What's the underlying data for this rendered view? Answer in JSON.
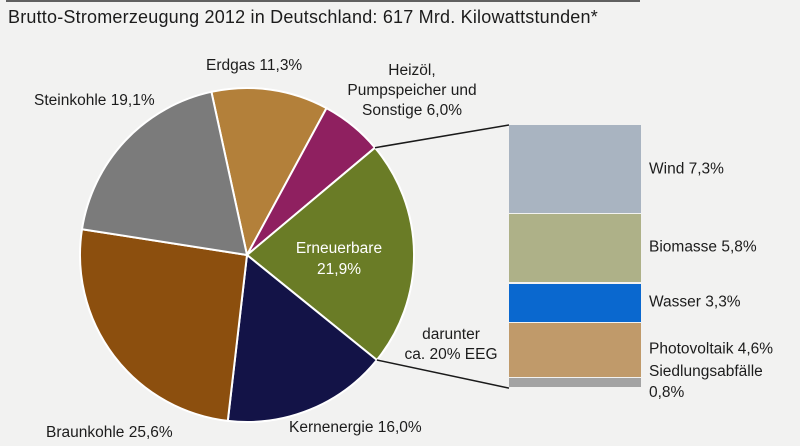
{
  "title": "Brutto-Stromerzeugung 2012 in Deutschland: 617 Mrd. Kilowattstunden*",
  "colors": {
    "background": "#f2f2f1",
    "text": "#1c1c1c",
    "connector_line": "#1a1a1a",
    "slice_divider": "#ffffff",
    "inside_label": "#ffffff"
  },
  "chart_data": [
    {
      "type": "pie",
      "title": "Brutto-Stromerzeugung 2012 in Deutschland",
      "total_label": "617 Mrd. Kilowattstunden*",
      "unit": "percent",
      "direction": "clockwise",
      "start_angle_deg": -12.3,
      "slices": [
        {
          "name": "Erdgas",
          "value": 11.3,
          "display": "Erdgas 11,3%",
          "color": "#b3803a"
        },
        {
          "name": "Heizöl, Pumpspeicher und Sonstige",
          "value": 6.0,
          "display": "Heizöl,\nPumpspeicher und\nSonstige 6,0%",
          "color": "#8f2060"
        },
        {
          "name": "Erneuerbare",
          "value": 21.9,
          "display": "Erneuerbare\n21,9%",
          "color": "#6a7c26",
          "label_inside": true
        },
        {
          "name": "Kernenergie",
          "value": 16.0,
          "display": "Kernenergie 16,0%",
          "color": "#131347"
        },
        {
          "name": "Braunkohle",
          "value": 25.6,
          "display": "Braunkohle 25,6%",
          "color": "#8c4f0e"
        },
        {
          "name": "Steinkohle",
          "value": 19.1,
          "display": "Steinkohle 19,1%",
          "color": "#7b7b7b"
        }
      ],
      "annotation": "darunter\nca. 20% EEG"
    },
    {
      "type": "bar",
      "stacked": true,
      "parent_slice": "Erneuerbare",
      "segments": [
        {
          "name": "Wind",
          "value": 7.3,
          "display": "Wind 7,3%",
          "color": "#a9b4c1"
        },
        {
          "name": "Biomasse",
          "value": 5.8,
          "display": "Biomasse 5,8%",
          "color": "#aeb188"
        },
        {
          "name": "Wasser",
          "value": 3.3,
          "display": "Wasser 3,3%",
          "color": "#0a68cf"
        },
        {
          "name": "Photovoltaik",
          "value": 4.6,
          "display": "Photovoltaik 4,6%",
          "color": "#c09a6a"
        },
        {
          "name": "Siedlungsabfälle",
          "value": 0.8,
          "display": "Siedlungsabfälle 0,8%",
          "color": "#a3a3a3"
        }
      ]
    }
  ]
}
